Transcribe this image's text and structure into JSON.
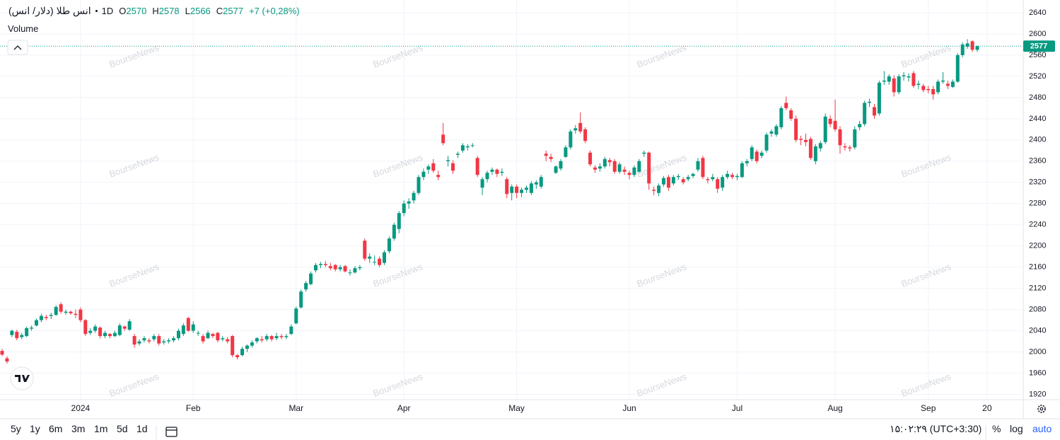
{
  "chart_data": {
    "type": "candlestick",
    "symbol": "انس طلا (دلار/ انس)",
    "interval": "1D",
    "ohlc_labels": [
      "O",
      "H",
      "L",
      "C"
    ],
    "change_label": "+7 (+0,28%)",
    "volume_label": "Volume",
    "watermark": "BourseNews",
    "up_color": "#089981",
    "down_color": "#f23645",
    "grid": true,
    "ylim": [
      1910,
      2664
    ],
    "yticks": [
      1920,
      1960,
      2000,
      2040,
      2080,
      2120,
      2160,
      2200,
      2240,
      2280,
      2320,
      2360,
      2400,
      2440,
      2480,
      2520,
      2560,
      2600,
      2640
    ],
    "xticks": [
      {
        "value": 16,
        "label": "2024"
      },
      {
        "value": 39,
        "label": "Feb"
      },
      {
        "value": 60,
        "label": "Mar"
      },
      {
        "value": 82,
        "label": "Apr"
      },
      {
        "value": 105,
        "label": "May"
      },
      {
        "value": 128,
        "label": "Jun"
      },
      {
        "value": 150,
        "label": "Jul"
      },
      {
        "value": 170,
        "label": "Aug"
      },
      {
        "value": 189,
        "label": "Sep"
      },
      {
        "value": 201,
        "label": "20"
      }
    ],
    "open": [
      2002,
      1988,
      2032,
      2038,
      2028,
      2030,
      2044,
      2050,
      2060,
      2066,
      2068,
      2070,
      2090,
      2074,
      2076,
      2072,
      2080,
      2060,
      2036,
      2040,
      2046,
      2030,
      2034,
      2030,
      2032,
      2048,
      2042,
      2030,
      2016,
      2022,
      2022,
      2024,
      2030,
      2018,
      2020,
      2022,
      2026,
      2034,
      2064,
      2040,
      2036,
      2030,
      2026,
      2034,
      2036,
      2024,
      2024,
      2030,
      1994,
      1994,
      2006,
      2012,
      2020,
      2024,
      2024,
      2030,
      2026,
      2030,
      2028,
      2034,
      2054,
      2084,
      2118,
      2128,
      2154,
      2164,
      2166,
      2162,
      2164,
      2156,
      2162,
      2150,
      2150,
      2158,
      2210,
      2176,
      2170,
      2176,
      2168,
      2190,
      2214,
      2232,
      2262,
      2280,
      2286,
      2300,
      2330,
      2344,
      2356,
      2334,
      2410,
      2360,
      2356,
      2372,
      2380,
      2386,
      2390,
      2366,
      2310,
      2326,
      2340,
      2344,
      2338,
      2326,
      2300,
      2312,
      2300,
      2306,
      2300,
      2316,
      2312,
      2374,
      2368,
      2338,
      2346,
      2368,
      2386,
      2418,
      2432,
      2420,
      2376,
      2348,
      2346,
      2350,
      2362,
      2360,
      2340,
      2344,
      2338,
      2334,
      2340,
      2374,
      2376,
      2306,
      2300,
      2316,
      2330,
      2318,
      2330,
      2326,
      2326,
      2332,
      2344,
      2366,
      2326,
      2326,
      2326,
      2310,
      2330,
      2334,
      2330,
      2330,
      2356,
      2364,
      2378,
      2370,
      2380,
      2412,
      2410,
      2424,
      2470,
      2456,
      2440,
      2402,
      2400,
      2402,
      2360,
      2384,
      2396,
      2440,
      2436,
      2420,
      2388,
      2386,
      2386,
      2424,
      2430,
      2470,
      2462,
      2450,
      2510,
      2510,
      2516,
      2490,
      2520,
      2518,
      2526,
      2504,
      2502,
      2496,
      2496,
      2490,
      2510,
      2506,
      2500,
      2510,
      2560,
      2576,
      2586,
      2570
    ],
    "high": [
      2006,
      1992,
      2042,
      2042,
      2036,
      2048,
      2050,
      2063,
      2072,
      2070,
      2074,
      2088,
      2094,
      2080,
      2078,
      2080,
      2084,
      2062,
      2045,
      2052,
      2048,
      2040,
      2036,
      2040,
      2054,
      2050,
      2062,
      2034,
      2024,
      2030,
      2026,
      2034,
      2034,
      2024,
      2026,
      2030,
      2044,
      2054,
      2066,
      2058,
      2040,
      2034,
      2040,
      2036,
      2038,
      2030,
      2028,
      2032,
      1996,
      2010,
      2014,
      2022,
      2028,
      2030,
      2034,
      2032,
      2036,
      2034,
      2034,
      2052,
      2086,
      2118,
      2134,
      2152,
      2168,
      2170,
      2172,
      2168,
      2166,
      2164,
      2164,
      2156,
      2162,
      2164,
      2214,
      2186,
      2182,
      2180,
      2192,
      2218,
      2244,
      2266,
      2286,
      2290,
      2304,
      2334,
      2346,
      2354,
      2364,
      2342,
      2432,
      2370,
      2362,
      2378,
      2394,
      2392,
      2394,
      2370,
      2330,
      2342,
      2348,
      2346,
      2346,
      2330,
      2316,
      2316,
      2310,
      2314,
      2322,
      2324,
      2334,
      2380,
      2374,
      2352,
      2364,
      2390,
      2420,
      2428,
      2452,
      2424,
      2380,
      2352,
      2356,
      2368,
      2366,
      2364,
      2358,
      2350,
      2342,
      2352,
      2364,
      2380,
      2378,
      2312,
      2318,
      2332,
      2334,
      2334,
      2336,
      2330,
      2334,
      2338,
      2366,
      2370,
      2330,
      2336,
      2330,
      2334,
      2342,
      2338,
      2336,
      2360,
      2364,
      2390,
      2382,
      2380,
      2414,
      2420,
      2430,
      2464,
      2482,
      2460,
      2446,
      2408,
      2412,
      2406,
      2392,
      2398,
      2450,
      2446,
      2476,
      2426,
      2394,
      2390,
      2426,
      2436,
      2474,
      2478,
      2468,
      2512,
      2530,
      2524,
      2522,
      2524,
      2528,
      2526,
      2530,
      2512,
      2506,
      2502,
      2502,
      2514,
      2528,
      2512,
      2514,
      2564,
      2584,
      2590,
      2588,
      2578
    ],
    "low": [
      1992,
      1978,
      2028,
      2022,
      2024,
      2028,
      2040,
      2048,
      2056,
      2060,
      2062,
      2068,
      2072,
      2070,
      2070,
      2064,
      2056,
      2030,
      2032,
      2036,
      2026,
      2026,
      2026,
      2028,
      2030,
      2040,
      2040,
      2008,
      2012,
      2018,
      2016,
      2020,
      2012,
      2014,
      2016,
      2018,
      2022,
      2030,
      2038,
      2036,
      2030,
      2016,
      2024,
      2026,
      2018,
      2020,
      2016,
      1990,
      1986,
      1992,
      2000,
      2008,
      2016,
      2018,
      2020,
      2020,
      2022,
      2024,
      2024,
      2032,
      2052,
      2082,
      2114,
      2126,
      2150,
      2158,
      2160,
      2154,
      2152,
      2152,
      2150,
      2144,
      2148,
      2154,
      2172,
      2168,
      2164,
      2160,
      2164,
      2186,
      2210,
      2224,
      2256,
      2270,
      2280,
      2296,
      2324,
      2336,
      2338,
      2324,
      2390,
      2350,
      2336,
      2366,
      2376,
      2380,
      2386,
      2330,
      2296,
      2320,
      2334,
      2330,
      2332,
      2290,
      2286,
      2290,
      2292,
      2300,
      2296,
      2308,
      2308,
      2360,
      2358,
      2336,
      2342,
      2366,
      2382,
      2412,
      2412,
      2394,
      2350,
      2338,
      2340,
      2346,
      2350,
      2336,
      2336,
      2334,
      2326,
      2330,
      2338,
      2368,
      2306,
      2296,
      2294,
      2312,
      2304,
      2314,
      2324,
      2316,
      2322,
      2328,
      2340,
      2326,
      2318,
      2322,
      2300,
      2304,
      2326,
      2326,
      2324,
      2328,
      2350,
      2360,
      2356,
      2366,
      2376,
      2406,
      2406,
      2420,
      2456,
      2436,
      2396,
      2390,
      2388,
      2362,
      2354,
      2378,
      2392,
      2424,
      2416,
      2374,
      2380,
      2378,
      2382,
      2418,
      2426,
      2462,
      2440,
      2446,
      2504,
      2504,
      2482,
      2486,
      2512,
      2510,
      2498,
      2496,
      2490,
      2488,
      2476,
      2486,
      2506,
      2496,
      2498,
      2508,
      2556,
      2572,
      2566,
      2566
    ],
    "close": [
      1995,
      1982,
      2040,
      2026,
      2032,
      2045,
      2046,
      2060,
      2068,
      2064,
      2070,
      2085,
      2076,
      2076,
      2073,
      2070,
      2060,
      2034,
      2040,
      2048,
      2030,
      2036,
      2030,
      2036,
      2050,
      2044,
      2058,
      2014,
      2020,
      2026,
      2020,
      2030,
      2016,
      2020,
      2022,
      2026,
      2040,
      2050,
      2040,
      2052,
      2036,
      2020,
      2036,
      2030,
      2022,
      2026,
      2020,
      1994,
      1990,
      2006,
      2012,
      2018,
      2026,
      2022,
      2030,
      2024,
      2030,
      2028,
      2030,
      2048,
      2082,
      2114,
      2130,
      2148,
      2164,
      2166,
      2164,
      2158,
      2156,
      2160,
      2152,
      2150,
      2158,
      2160,
      2176,
      2180,
      2170,
      2164,
      2188,
      2214,
      2240,
      2262,
      2280,
      2284,
      2300,
      2330,
      2340,
      2350,
      2342,
      2330,
      2394,
      2362,
      2342,
      2374,
      2390,
      2388,
      2390,
      2334,
      2326,
      2338,
      2344,
      2336,
      2340,
      2298,
      2312,
      2300,
      2306,
      2310,
      2318,
      2320,
      2330,
      2370,
      2364,
      2350,
      2360,
      2386,
      2416,
      2422,
      2416,
      2398,
      2354,
      2344,
      2350,
      2364,
      2358,
      2340,
      2354,
      2340,
      2334,
      2348,
      2360,
      2376,
      2318,
      2304,
      2314,
      2328,
      2310,
      2330,
      2332,
      2320,
      2330,
      2336,
      2360,
      2330,
      2324,
      2330,
      2308,
      2330,
      2336,
      2330,
      2332,
      2356,
      2360,
      2386,
      2360,
      2376,
      2410,
      2416,
      2426,
      2460,
      2460,
      2440,
      2400,
      2400,
      2396,
      2366,
      2388,
      2394,
      2444,
      2430,
      2420,
      2390,
      2386,
      2384,
      2420,
      2430,
      2470,
      2472,
      2446,
      2508,
      2512,
      2520,
      2490,
      2520,
      2522,
      2520,
      2502,
      2506,
      2494,
      2494,
      2486,
      2510,
      2512,
      2502,
      2510,
      2560,
      2580,
      2582,
      2570,
      2577
    ],
    "timeframes": [
      "5y",
      "1y",
      "6m",
      "3m",
      "1m",
      "5d",
      "1d"
    ],
    "clock": "۱۵:۰۲:۲۹ (UTC+3:30)",
    "scale_buttons": [
      "%",
      "log",
      "auto"
    ]
  }
}
